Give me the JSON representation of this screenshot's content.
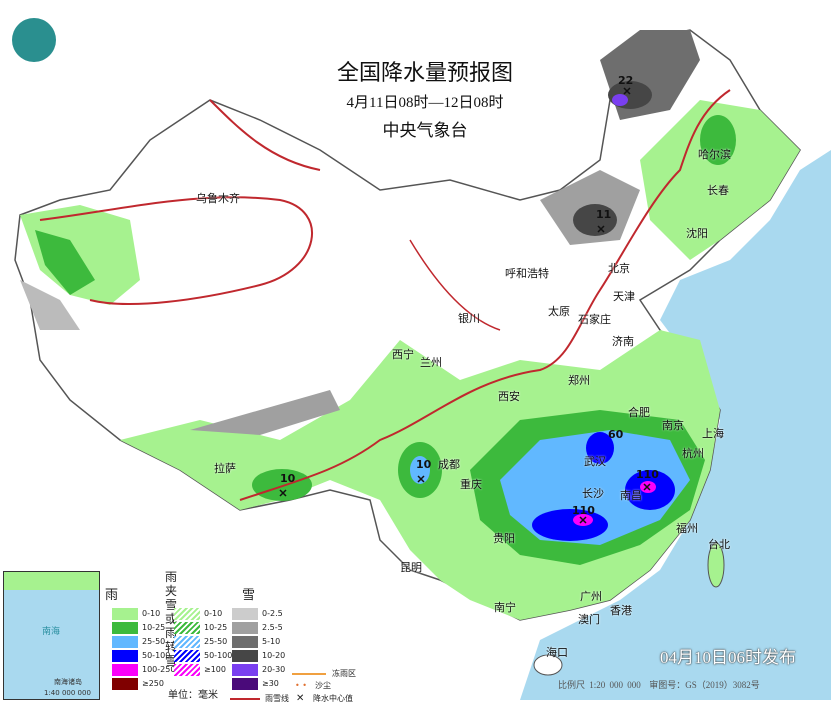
{
  "title": {
    "main": "全国降水量预报图",
    "period": "4月11日08时—12日08时",
    "issuer": "中央气象台"
  },
  "release_time": "04月10日06时发布",
  "scale_text": "比例尺 1:20 000 000",
  "map_number": "审图号：GS（2019）3082号",
  "inset": {
    "name": "南海诸岛",
    "scale": "1:40 000 000",
    "sea": "南海"
  },
  "colors": {
    "ocean": "#a9d9ef",
    "land": "#ffffff",
    "rain_0_10": "#a6f28f",
    "rain_10_25": "#3dba3d",
    "rain_25_50": "#61b8ff",
    "rain_50_100": "#0000ff",
    "rain_100_250": "#fa00fa",
    "rain_ge250": "#800040"
  },
  "cities": [
    "乌鲁木齐",
    "哈尔滨",
    "长春",
    "沈阳",
    "北京",
    "呼和浩特",
    "天津",
    "太原",
    "石家庄",
    "银川",
    "济南",
    "西宁",
    "兰州",
    "郑州",
    "西安",
    "合肥",
    "南京",
    "上海",
    "杭州",
    "武汉",
    "成都",
    "重庆",
    "长沙",
    "南昌",
    "拉萨",
    "贵阳",
    "福州",
    "台北",
    "昆明",
    "南宁",
    "广州",
    "香港",
    "澳门",
    "海口"
  ],
  "center_values": [
    "22",
    "11",
    "10",
    "10",
    "60",
    "110",
    "110"
  ],
  "legend": {
    "rain": {
      "title": "雨",
      "items": [
        "0-10",
        "10-25",
        "25-50",
        "50-100",
        "100-250",
        "≥250"
      ],
      "colors": [
        "#a6f28f",
        "#3dba3d",
        "#61b8ff",
        "#0000fe",
        "#fa00fa",
        "#800000"
      ]
    },
    "sleet": {
      "title": "雨夹雪\n或雨转雪",
      "title1": "雨夹雪",
      "title2": "或雨转雪",
      "items": [
        "0-10",
        "10-25",
        "25-50",
        "50-100",
        "≥100"
      ],
      "colors": [
        "#a6f28f",
        "#3dba3d",
        "#61b8ff",
        "#0000fe",
        "#fa00fa"
      ]
    },
    "snow": {
      "title": "雪",
      "items": [
        "0-2.5",
        "2.5-5",
        "5-10",
        "10-20",
        "20-30",
        "≥30"
      ],
      "colors": [
        "#cccccc",
        "#a0a0a0",
        "#6e6e6e",
        "#464646",
        "#7a3ff0",
        "#4a0a7a"
      ]
    },
    "unit": "单位：毫米",
    "symbols": {
      "orange_line": "冻雨区",
      "dots": "沙尘",
      "toothed_line": "雨雪线",
      "cross": "降水中心值"
    }
  }
}
